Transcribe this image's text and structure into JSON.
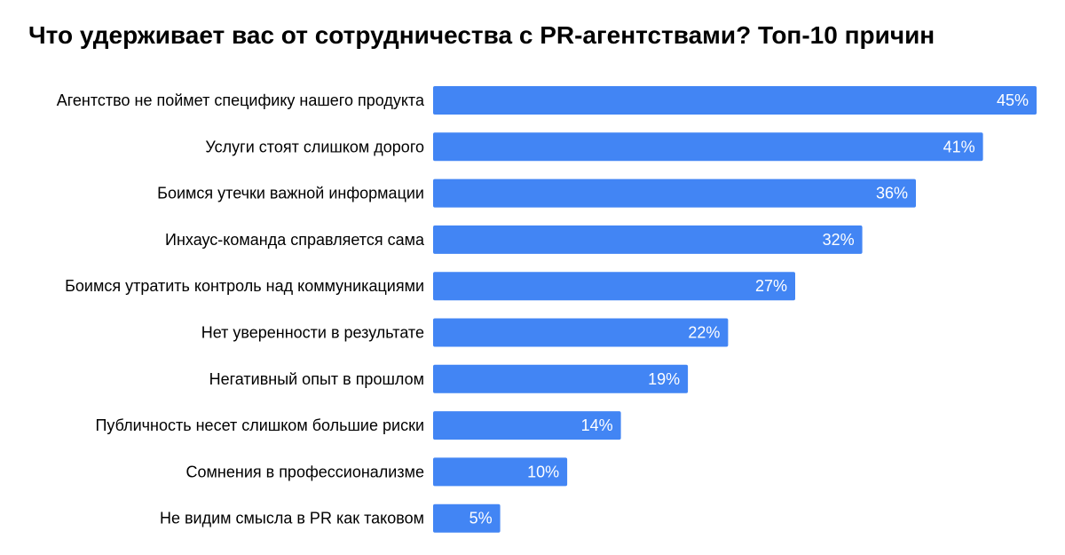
{
  "chart_data": {
    "type": "bar",
    "orientation": "horizontal",
    "title": "Что удерживает вас от сотрудничества с PR-агентствами? Топ-10 причин",
    "categories": [
      "Агентство не поймет специфику нашего продукта",
      "Услуги стоят слишком дорого",
      "Боимся утечки важной информации",
      "Инхаус-команда справляется сама",
      "Боимся утратить контроль над коммуникациями",
      "Нет уверенности в результате",
      "Негативный опыт в прошлом",
      "Публичность несет слишком большие риски",
      "Сомнения в профессионализме",
      "Не видим смысла в PR как таковом"
    ],
    "values": [
      45,
      41,
      36,
      32,
      27,
      22,
      19,
      14,
      10,
      5
    ],
    "value_labels": [
      "45%",
      "41%",
      "36%",
      "32%",
      "27%",
      "22%",
      "19%",
      "14%",
      "10%",
      "5%"
    ],
    "xlim": [
      0,
      45
    ],
    "grid": false,
    "legend": "none",
    "bar_color": "#4285f4",
    "label_color": "#ffffff"
  }
}
